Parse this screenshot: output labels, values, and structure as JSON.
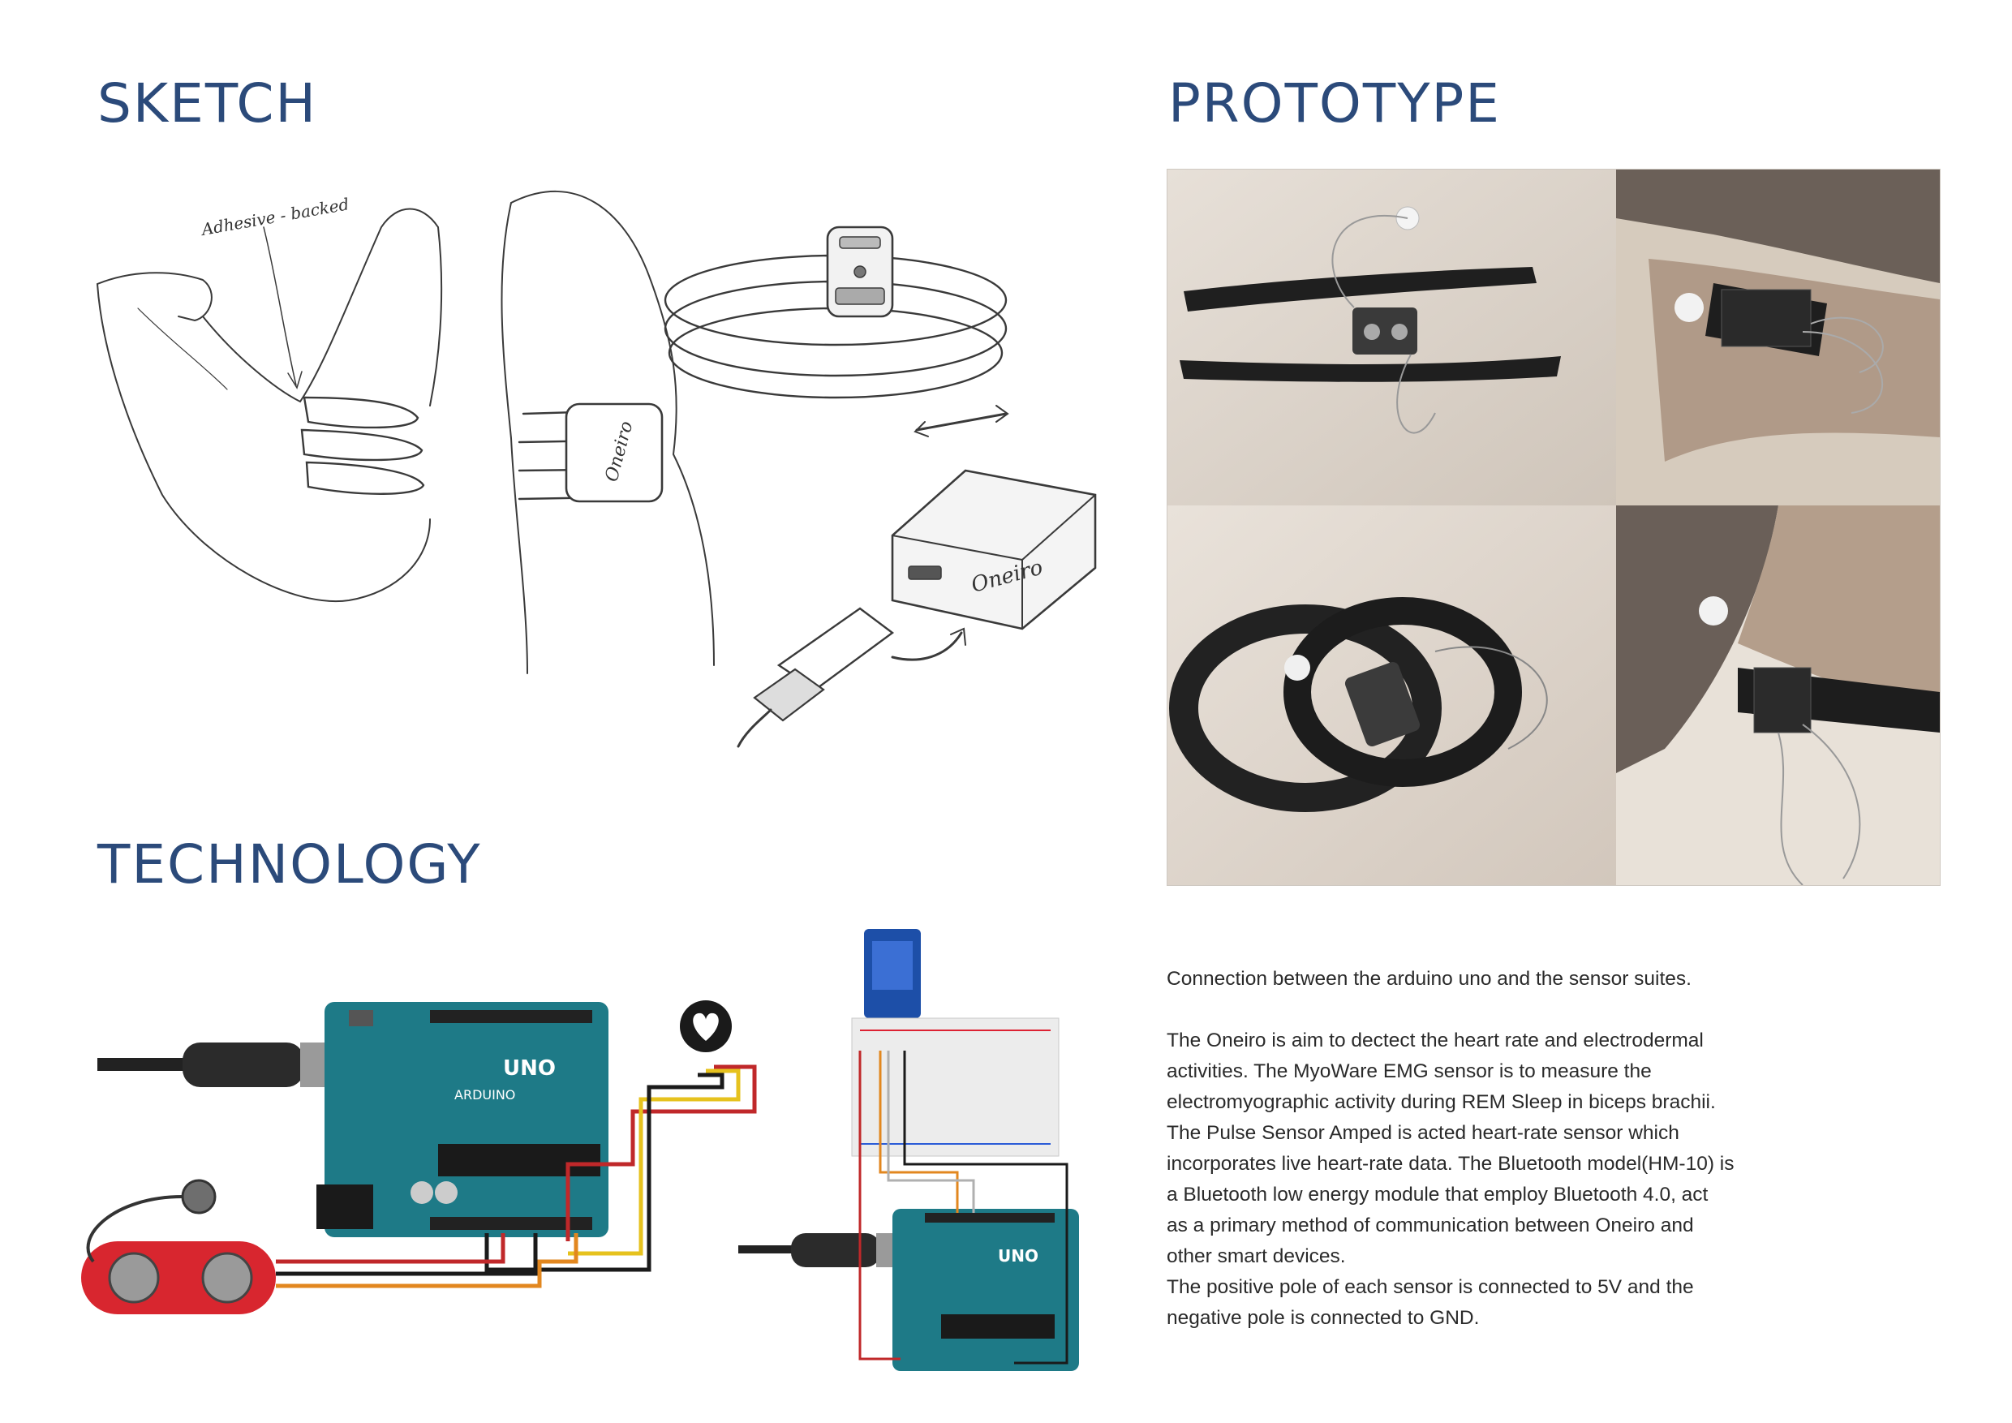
{
  "headings": {
    "sketch": "SKETCH",
    "prototype": "PROTOTYPE",
    "technology": "TECHNOLOGY"
  },
  "sketch": {
    "annotation": "Adhesive - backed",
    "brand_armband": "Oneiro",
    "brand_device": "Oneiro"
  },
  "tech": {
    "board_label_1": "UNO",
    "board_label_2": "ARDUINO",
    "board_label_3": "UNO"
  },
  "description": {
    "intro": "Connection between the arduino uno and the sensor suites.",
    "lines": [
      "The Oneiro is aim to dectect the heart rate and electrodermal",
      "activities. The MyoWare EMG sensor is to measure the",
      "electromyographic activity during REM Sleep in  biceps brachii.",
      "The Pulse Sensor Amped is acted heart-rate sensor which",
      "incorporates live heart-rate data. The Bluetooth model(HM-10) is",
      "a Bluetooth low energy module that employ Bluetooth 4.0, act",
      "as a primary method of communication between Oneiro and",
      "other smart devices.",
      "The positive pole of each sensor is connected to 5V and the",
      "negative pole is connected to GND."
    ]
  },
  "colors": {
    "heading": "#2b4a7a",
    "arduino": "#1e7a87",
    "wire_red": "#c0282a",
    "wire_yellow": "#e6c21e",
    "wire_orange": "#e2871f",
    "emg_board": "#d8262f"
  }
}
